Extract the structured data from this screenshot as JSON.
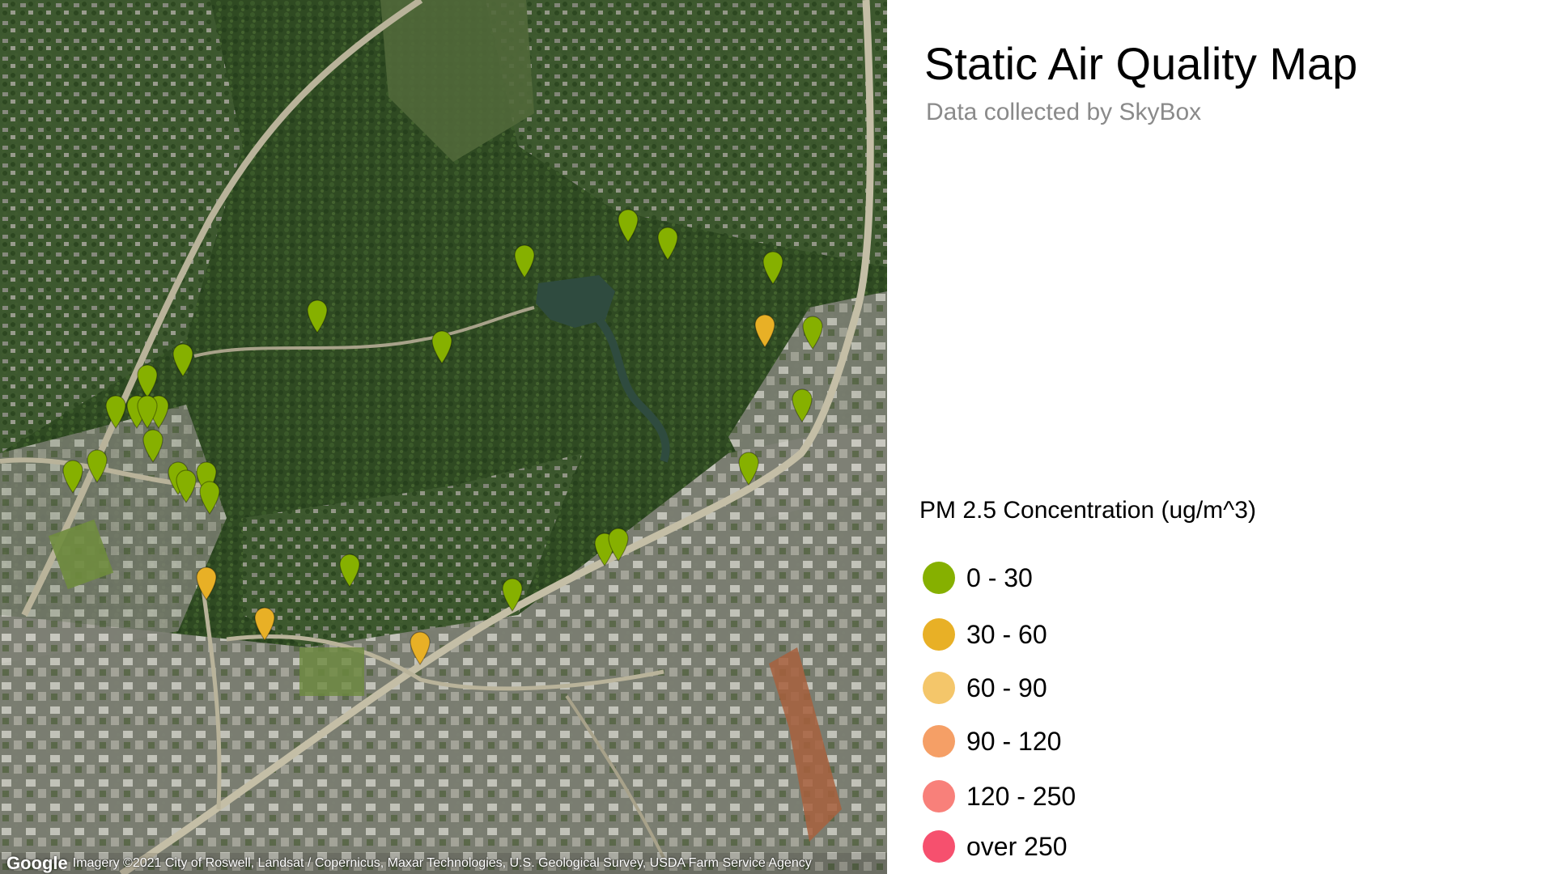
{
  "header": {
    "title": "Static Air Quality Map",
    "subtitle": "Data collected by SkyBox"
  },
  "map": {
    "attribution": {
      "logo": "Google",
      "text": "Imagery ©2021 City of Roswell, Landsat / Copernicus, Maxar Technologies, U.S. Geological Survey, USDA Farm Service Agency"
    },
    "colors": {
      "forest": "#2f4a22",
      "road": "#b9b39a",
      "lake": "#2f4b3f",
      "urban": "#8f8f86"
    },
    "marker_icon": "map-pin-icon",
    "markers": [
      {
        "category": "0 - 30"
      },
      {
        "category": "0 - 30"
      },
      {
        "category": "0 - 30"
      },
      {
        "category": "0 - 30"
      },
      {
        "category": "0 - 30"
      },
      {
        "category": "30 - 60"
      },
      {
        "category": "0 - 30"
      },
      {
        "category": "0 - 30"
      },
      {
        "category": "0 - 30"
      },
      {
        "category": "0 - 30"
      },
      {
        "category": "0 - 30"
      },
      {
        "category": "0 - 30"
      },
      {
        "category": "0 - 30"
      },
      {
        "category": "0 - 30"
      },
      {
        "category": "0 - 30"
      },
      {
        "category": "0 - 30"
      },
      {
        "category": "0 - 30"
      },
      {
        "category": "0 - 30"
      },
      {
        "category": "0 - 30"
      },
      {
        "category": "0 - 30"
      },
      {
        "category": "0 - 30"
      },
      {
        "category": "0 - 30"
      },
      {
        "category": "0 - 30"
      },
      {
        "category": "30 - 60"
      },
      {
        "category": "0 - 30"
      },
      {
        "category": "0 - 30"
      },
      {
        "category": "0 - 30"
      },
      {
        "category": "30 - 60"
      },
      {
        "category": "30 - 60"
      },
      {
        "category": "0 - 30"
      }
    ]
  },
  "legend": {
    "title": "PM 2.5 Concentration (ug/m^3)",
    "items": [
      {
        "label": "0 - 30",
        "color": "#86b000"
      },
      {
        "label": "30 - 60",
        "color": "#e8b026"
      },
      {
        "label": "60 - 90",
        "color": "#f4c66a"
      },
      {
        "label": "90 - 120",
        "color": "#f59f66"
      },
      {
        "label": "120 - 250",
        "color": "#f8807a"
      },
      {
        "label": "over 250",
        "color": "#f6506e"
      }
    ]
  }
}
